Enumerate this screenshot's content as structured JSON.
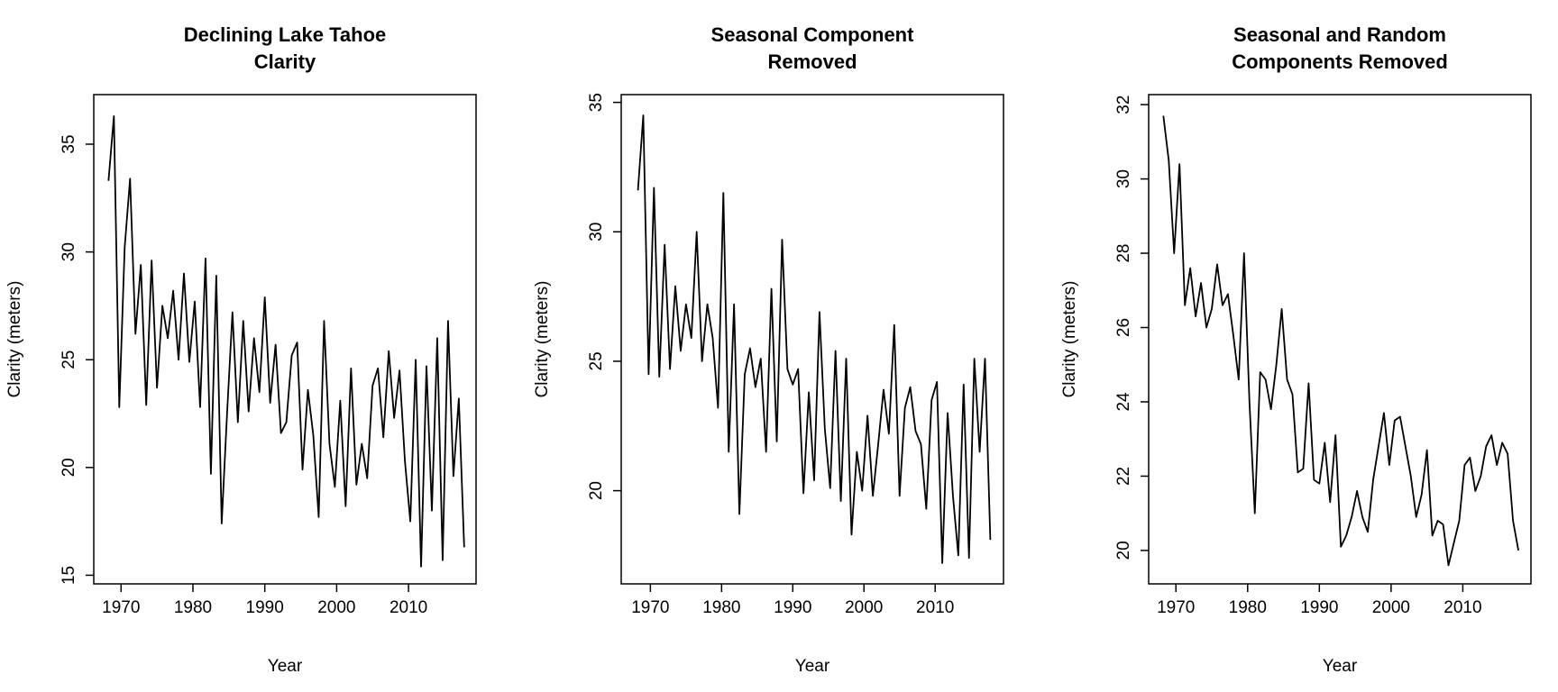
{
  "chart_data": [
    {
      "type": "line",
      "title": [
        "Declining Lake Tahoe",
        "Clarity"
      ],
      "x_label": "Year",
      "y_label": "Clarity (meters)",
      "color": "#000000",
      "x": [
        1968.25,
        1969,
        1969.75,
        1970.5,
        1971.25,
        1972,
        1972.75,
        1973.5,
        1974.25,
        1975,
        1975.75,
        1976.5,
        1977.25,
        1978,
        1978.75,
        1979.5,
        1980.25,
        1981,
        1981.75,
        1982.5,
        1983.25,
        1984,
        1984.75,
        1985.5,
        1986.25,
        1987,
        1987.75,
        1988.5,
        1989.25,
        1990,
        1990.75,
        1991.5,
        1992.25,
        1993,
        1993.75,
        1994.5,
        1995.25,
        1996,
        1996.75,
        1997.5,
        1998.25,
        1999,
        1999.75,
        2000.5,
        2001.25,
        2002,
        2002.75,
        2003.5,
        2004.25,
        2005,
        2005.75,
        2006.5,
        2007.25,
        2008,
        2008.75,
        2009.5,
        2010.25,
        2011,
        2011.75,
        2012.5,
        2013.25,
        2014,
        2014.75,
        2015.5,
        2016.25,
        2017,
        2017.75
      ],
      "values": [
        33.3,
        36.3,
        22.8,
        30.2,
        33.4,
        26.2,
        29.4,
        22.9,
        29.6,
        23.7,
        27.5,
        26.0,
        28.2,
        25.0,
        29.0,
        24.9,
        27.7,
        22.8,
        29.7,
        19.7,
        28.9,
        17.4,
        22.5,
        27.2,
        22.1,
        26.8,
        22.6,
        26.0,
        23.5,
        27.9,
        23.0,
        25.7,
        21.6,
        22.1,
        25.2,
        25.8,
        19.9,
        23.6,
        21.5,
        17.7,
        26.8,
        21.1,
        19.1,
        23.1,
        18.2,
        24.6,
        19.2,
        21.1,
        19.5,
        23.8,
        24.6,
        21.4,
        25.4,
        22.3,
        24.5,
        20.3,
        17.5,
        25.0,
        15.4,
        24.7,
        18.0,
        26.0,
        15.7,
        26.8,
        19.6,
        23.2,
        16.3
      ],
      "xlim": [
        1966.2,
        2019.4
      ],
      "xticks": [
        1970,
        1980,
        1990,
        2000,
        2010
      ],
      "ylim": [
        14.6,
        37.3
      ],
      "yticks": [
        15,
        20,
        25,
        30,
        35
      ],
      "grid": false
    },
    {
      "type": "line",
      "title": [
        "Seasonal Component",
        "Removed"
      ],
      "x_label": "Year",
      "y_label": "Clarity (meters)",
      "color": "#000000",
      "x": [
        1968.25,
        1969,
        1969.75,
        1970.5,
        1971.25,
        1972,
        1972.75,
        1973.5,
        1974.25,
        1975,
        1975.75,
        1976.5,
        1977.25,
        1978,
        1978.75,
        1979.5,
        1980.25,
        1981,
        1981.75,
        1982.5,
        1983.25,
        1984,
        1984.75,
        1985.5,
        1986.25,
        1987,
        1987.75,
        1988.5,
        1989.25,
        1990,
        1990.75,
        1991.5,
        1992.25,
        1993,
        1993.75,
        1994.5,
        1995.25,
        1996,
        1996.75,
        1997.5,
        1998.25,
        1999,
        1999.75,
        2000.5,
        2001.25,
        2002,
        2002.75,
        2003.5,
        2004.25,
        2005,
        2005.75,
        2006.5,
        2007.25,
        2008,
        2008.75,
        2009.5,
        2010.25,
        2011,
        2011.75,
        2012.5,
        2013.25,
        2014,
        2014.75,
        2015.5,
        2016.25,
        2017,
        2017.75
      ],
      "values": [
        31.6,
        34.5,
        24.5,
        31.7,
        24.4,
        29.5,
        24.7,
        27.9,
        25.4,
        27.2,
        25.9,
        30.0,
        25.0,
        27.2,
        25.9,
        23.2,
        31.5,
        21.5,
        27.2,
        19.1,
        24.5,
        25.5,
        24.0,
        25.1,
        21.5,
        27.8,
        21.9,
        29.7,
        24.7,
        24.1,
        24.7,
        19.9,
        23.8,
        20.4,
        26.9,
        22.4,
        20.1,
        25.4,
        19.6,
        25.1,
        18.3,
        21.5,
        20.0,
        22.9,
        19.8,
        21.8,
        23.9,
        22.2,
        26.4,
        19.8,
        23.2,
        24.0,
        22.3,
        21.8,
        19.3,
        23.5,
        24.2,
        17.2,
        23.0,
        19.8,
        17.5,
        24.1,
        17.4,
        25.1,
        21.5,
        25.1,
        18.1
      ],
      "xlim": [
        1965.9,
        2019.6
      ],
      "xticks": [
        1970,
        1980,
        1990,
        2000,
        2010
      ],
      "ylim": [
        16.4,
        35.3
      ],
      "yticks": [
        20,
        25,
        30,
        35
      ],
      "grid": false
    },
    {
      "type": "line",
      "title": [
        "Seasonal and Random",
        "Components Removed"
      ],
      "x_label": "Year",
      "y_label": "Clarity (meters)",
      "color": "#000000",
      "x": [
        1968.25,
        1969,
        1969.75,
        1970.5,
        1971.25,
        1972,
        1972.75,
        1973.5,
        1974.25,
        1975,
        1975.75,
        1976.5,
        1977.25,
        1978,
        1978.75,
        1979.5,
        1980.25,
        1981,
        1981.75,
        1982.5,
        1983.25,
        1984,
        1984.75,
        1985.5,
        1986.25,
        1987,
        1987.75,
        1988.5,
        1989.25,
        1990,
        1990.75,
        1991.5,
        1992.25,
        1993,
        1993.75,
        1994.5,
        1995.25,
        1996,
        1996.75,
        1997.5,
        1998.25,
        1999,
        1999.75,
        2000.5,
        2001.25,
        2002,
        2002.75,
        2003.5,
        2004.25,
        2005,
        2005.75,
        2006.5,
        2007.25,
        2008,
        2008.75,
        2009.5,
        2010.25,
        2011,
        2011.75,
        2012.5,
        2013.25,
        2014,
        2014.75,
        2015.5,
        2016.25,
        2017,
        2017.75
      ],
      "values": [
        31.7,
        30.5,
        28.0,
        30.4,
        26.6,
        27.6,
        26.3,
        27.2,
        26.0,
        26.5,
        27.7,
        26.6,
        26.9,
        25.8,
        24.6,
        28.0,
        24.0,
        21.0,
        24.8,
        24.6,
        23.8,
        25.0,
        26.5,
        24.6,
        24.2,
        22.1,
        22.2,
        24.5,
        21.9,
        21.8,
        22.9,
        21.3,
        23.1,
        20.1,
        20.4,
        20.9,
        21.6,
        20.9,
        20.5,
        21.9,
        22.8,
        23.7,
        22.3,
        23.5,
        23.6,
        22.8,
        22.0,
        20.9,
        21.5,
        22.7,
        20.4,
        20.8,
        20.7,
        19.6,
        20.2,
        20.8,
        22.3,
        22.5,
        21.6,
        22.0,
        22.8,
        23.1,
        22.3,
        22.9,
        22.6,
        20.8,
        20.0
      ],
      "xlim": [
        1966.2,
        2019.5
      ],
      "xticks": [
        1970,
        1980,
        1990,
        2000,
        2010
      ],
      "ylim": [
        19.1,
        32.27
      ],
      "yticks": [
        20,
        22,
        24,
        26,
        28,
        30,
        32
      ],
      "grid": false
    }
  ]
}
